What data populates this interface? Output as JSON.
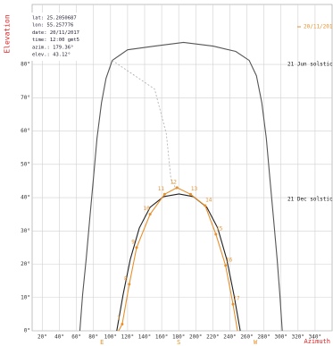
{
  "chart_data": {
    "type": "line",
    "y_label": "Elevation",
    "x_label": "Azimuth",
    "info_lines": [
      "lat: 25.2050687",
      "lon: 55.257776",
      "date: 20/11/2017",
      "time: 12:00 gmt5",
      "azim.: 179.36°",
      "elev.: 43.12°"
    ],
    "xlim": [
      8,
      360
    ],
    "ylim": [
      0,
      98
    ],
    "xticks": [
      {
        "value": 20,
        "label": "20°"
      },
      {
        "value": 40,
        "label": "40°"
      },
      {
        "value": 60,
        "label": "60°"
      },
      {
        "value": 80,
        "label": "80°"
      },
      {
        "value": 100,
        "label": "100°"
      },
      {
        "value": 120,
        "label": "120°"
      },
      {
        "value": 140,
        "label": "140°"
      },
      {
        "value": 160,
        "label": "160°"
      },
      {
        "value": 180,
        "label": "180°"
      },
      {
        "value": 200,
        "label": "200°"
      },
      {
        "value": 220,
        "label": "220°"
      },
      {
        "value": 240,
        "label": "240°"
      },
      {
        "value": 260,
        "label": "260°"
      },
      {
        "value": 280,
        "label": "280°"
      },
      {
        "value": 300,
        "label": "300°"
      },
      {
        "value": 320,
        "label": "320°"
      },
      {
        "value": 340,
        "label": "340°"
      }
    ],
    "yticks": [
      {
        "value": 0,
        "label": "0°"
      },
      {
        "value": 10,
        "label": "10°"
      },
      {
        "value": 20,
        "label": "20°"
      },
      {
        "value": 30,
        "label": "30°"
      },
      {
        "value": 40,
        "label": "40°"
      },
      {
        "value": 50,
        "label": "50°"
      },
      {
        "value": 60,
        "label": "60°"
      },
      {
        "value": 70,
        "label": "70°"
      },
      {
        "value": 80,
        "label": "80°"
      }
    ],
    "compass": [
      {
        "value": 90,
        "label": "E"
      },
      {
        "value": 180,
        "label": "S"
      },
      {
        "value": 270,
        "label": "W"
      }
    ],
    "grid": true,
    "legend": "top-right",
    "series": [
      {
        "name": "21 Jun solstice",
        "color": "#555555",
        "x": [
          64,
          67.2,
          71.4,
          75.6,
          79.9,
          84.1,
          89.4,
          94.7,
          102,
          120,
          151.7,
          185.6,
          220.4,
          246.9,
          262.7,
          271.2,
          277.5,
          282.8,
          287,
          291.3,
          295.5,
          298.7,
          301.5
        ],
        "values": [
          0,
          10.8,
          21.5,
          33.6,
          45.7,
          57.8,
          68.5,
          75.8,
          81.2,
          84.4,
          85.5,
          86.6,
          85.5,
          83.9,
          81.2,
          76.6,
          68.5,
          57.8,
          45.7,
          33.6,
          21.5,
          10.8,
          0
        ]
      },
      {
        "name": "21 Dec solstice",
        "color": "#222222",
        "x": [
          107.3,
          114.7,
          123.2,
          133.8,
          146.4,
          162.3,
          180.3,
          197.2,
          213,
          225.7,
          236.3,
          244.8,
          252.2
        ],
        "values": [
          0,
          10.8,
          21.5,
          30.9,
          37.1,
          40.3,
          41.1,
          40.3,
          37.1,
          30.9,
          21.5,
          10.8,
          0
        ]
      },
      {
        "name": "20/11/2017",
        "color": "#e8902a",
        "x": [
          109.5,
          113.7,
          122,
          130.6,
          146.4,
          163.4,
          178,
          194,
          211,
          223.6,
          235,
          243.7,
          249
        ],
        "values": [
          0,
          2,
          14,
          25,
          35,
          41,
          43,
          41,
          37.6,
          29,
          19.6,
          8,
          0
        ]
      },
      {
        "color": "#aaaaaa",
        "dash": true,
        "x": [
          102,
          151.7,
          165.5,
          170.8,
          177.1
        ],
        "values": [
          81.2,
          72.6,
          59.1,
          45.7,
          42.5
        ]
      }
    ],
    "hours": {
      "color": "#e8902a",
      "labels": [
        7,
        8,
        9,
        10,
        11,
        12,
        13,
        14,
        15,
        16,
        17
      ],
      "x": [
        113.7,
        122,
        130.6,
        146.4,
        163.4,
        178,
        194,
        211,
        223.6,
        235,
        243.7
      ],
      "values": [
        2,
        14,
        25,
        35,
        41,
        43,
        41,
        37.6,
        29,
        19.6,
        8
      ]
    }
  }
}
